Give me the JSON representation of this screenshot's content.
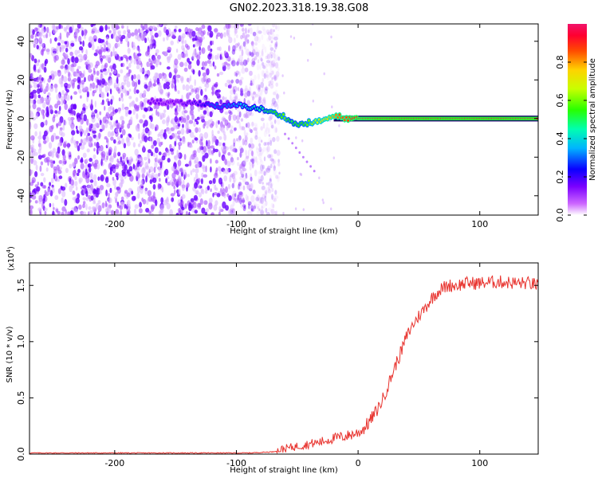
{
  "title": "GN02.2023.318.19.38.G08",
  "chart_data": [
    {
      "type": "heatmap",
      "xlabel": "Height of straight line (km)",
      "ylabel": "Frequency (Hz)",
      "xlim": [
        -270,
        148
      ],
      "ylim": [
        -50,
        49
      ],
      "x_ticks": [
        -200,
        -100,
        0,
        100
      ],
      "y_ticks": [
        -40,
        -20,
        0,
        20,
        40
      ],
      "colorbar": {
        "label": "Normalized spectral amplitude",
        "range": [
          0.0,
          1.0
        ],
        "ticks": [
          0.0,
          0.2,
          0.4,
          0.6,
          0.8
        ]
      },
      "noise_region_x": [
        -270,
        -85
      ],
      "signal_track": {
        "x": [
          -172,
          -150,
          -130,
          -120,
          -110,
          -100,
          -90,
          -80,
          -75,
          -70,
          -65,
          -60,
          -55,
          -50,
          -45,
          -40,
          -35,
          -30,
          -25,
          -20,
          -15,
          -10,
          -5,
          0,
          20,
          50,
          80,
          100,
          130,
          148
        ],
        "frequency": [
          9,
          8,
          8,
          7,
          6,
          7,
          6,
          5,
          4,
          3,
          2,
          1,
          -2,
          -3,
          -3,
          -2,
          -2,
          -1,
          0,
          1,
          1,
          0,
          0,
          0,
          0,
          0,
          0,
          0,
          0,
          0
        ],
        "amplitude": [
          0.15,
          0.15,
          0.2,
          0.3,
          0.3,
          0.35,
          0.4,
          0.45,
          0.5,
          0.55,
          0.55,
          0.6,
          0.5,
          0.55,
          0.55,
          0.6,
          0.65,
          0.7,
          0.75,
          0.8,
          0.85,
          0.85,
          0.9,
          0.9,
          0.95,
          0.95,
          0.95,
          0.95,
          0.95,
          0.95
        ]
      }
    },
    {
      "type": "line",
      "xlabel": "Height of straight line (km)",
      "ylabel": "SNR (10 * v/v)",
      "y_scale_label": "(x10",
      "y_scale_exponent": "4",
      "xlim": [
        -270,
        148
      ],
      "ylim": [
        0,
        1.7
      ],
      "x_ticks": [
        -200,
        -100,
        0,
        100
      ],
      "y_ticks": [
        0.0,
        0.5,
        1.0,
        1.5
      ],
      "series": [
        {
          "color": "#e8332e",
          "x": [
            -270,
            -250,
            -230,
            -210,
            -190,
            -170,
            -150,
            -130,
            -110,
            -90,
            -70,
            -60,
            -50,
            -40,
            -30,
            -20,
            -10,
            0,
            5,
            10,
            15,
            20,
            25,
            30,
            35,
            40,
            45,
            50,
            55,
            60,
            65,
            70,
            75,
            80,
            90,
            100,
            110,
            120,
            130,
            140,
            148
          ],
          "values": [
            0.01,
            0.01,
            0.01,
            0.01,
            0.01,
            0.01,
            0.01,
            0.01,
            0.01,
            0.01,
            0.02,
            0.05,
            0.07,
            0.09,
            0.11,
            0.14,
            0.16,
            0.19,
            0.23,
            0.3,
            0.38,
            0.48,
            0.62,
            0.77,
            0.9,
            1.05,
            1.15,
            1.23,
            1.3,
            1.38,
            1.44,
            1.48,
            1.5,
            1.5,
            1.52,
            1.52,
            1.53,
            1.53,
            1.52,
            1.52,
            1.5
          ]
        }
      ]
    }
  ]
}
